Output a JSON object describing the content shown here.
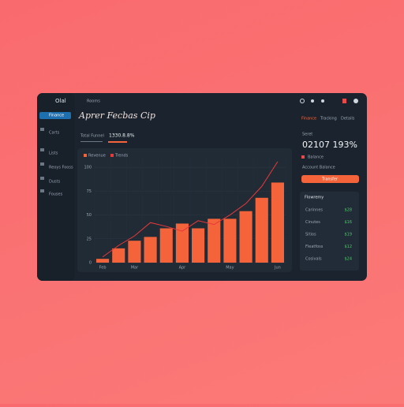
{
  "header": {
    "brand": "Olal",
    "tab": "Rooms",
    "title": "Aprer Fecbas Cip",
    "nav": [
      "Finance",
      "Tracking",
      "Details"
    ]
  },
  "sidebar": {
    "items": [
      "Finance",
      "Carts",
      "Lists",
      "Reoys Fooss",
      "Dusts",
      "Fouses"
    ]
  },
  "subtabs": [
    "Total Funnel",
    "1330.8.8%"
  ],
  "chart_data": {
    "type": "bar",
    "legend": [
      "Revenue",
      "Trends"
    ],
    "categories": [
      "Feb",
      null,
      "Mar",
      null,
      null,
      "Apr",
      null,
      null,
      "May",
      null,
      null,
      "Jun"
    ],
    "series": [
      {
        "name": "Revenue",
        "type": "bar",
        "color": "#f4633a",
        "values": [
          4,
          15,
          23,
          27,
          36,
          41,
          36,
          46,
          46,
          54,
          68,
          84
        ]
      },
      {
        "name": "Trends",
        "type": "line",
        "color": "#e8383a",
        "values": [
          6,
          18,
          28,
          42,
          38,
          33,
          44,
          40,
          50,
          62,
          80,
          106
        ]
      }
    ],
    "ylim": [
      0,
      110
    ],
    "yticks": [
      0,
      25,
      50,
      75,
      100
    ],
    "grid": true
  },
  "summary": {
    "label": "Seret",
    "value": "02107 193%",
    "item": "Balance",
    "sub": "Account Balance",
    "button": "Transfer"
  },
  "flow": {
    "title": "Flowremy",
    "rows": [
      {
        "name": "Carinnes",
        "value": "$28"
      },
      {
        "name": "Cinutes",
        "value": "$16"
      },
      {
        "name": "Sitios",
        "value": "$19"
      },
      {
        "name": "Fleatfoss",
        "value": "$12"
      },
      {
        "name": "Cosivals",
        "value": "$24"
      }
    ]
  }
}
